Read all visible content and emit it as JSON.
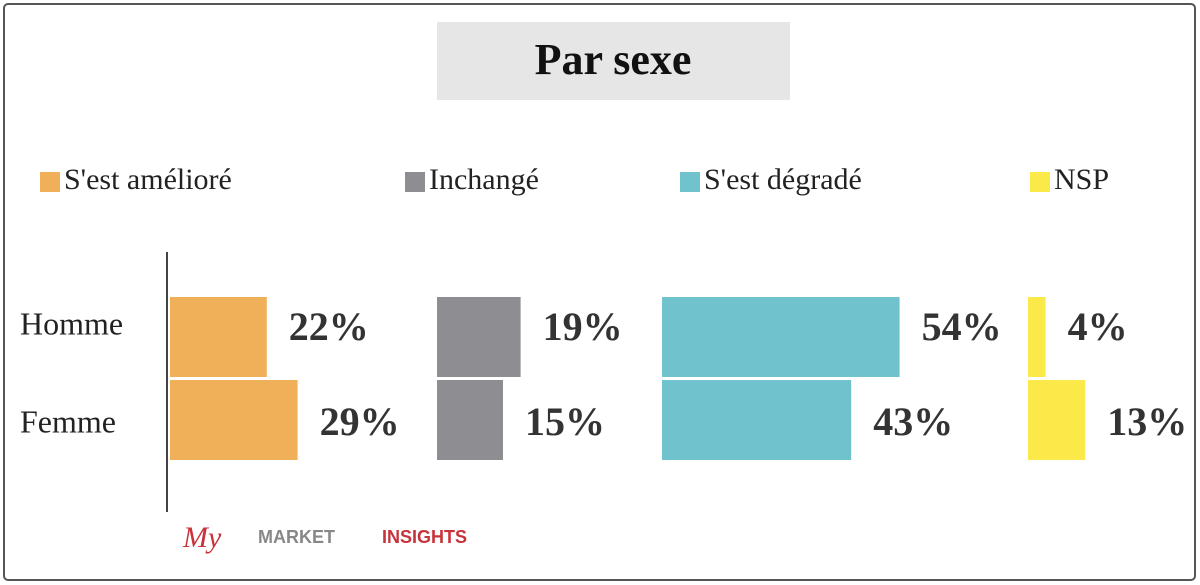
{
  "chart_data": {
    "type": "bar",
    "orientation": "horizontal",
    "title": "Par sexe",
    "categories": [
      "Homme",
      "Femme"
    ],
    "series": [
      {
        "name": "S'est amélioré",
        "color": "#f0b05a",
        "values": [
          22,
          29
        ],
        "value_labels": [
          "22%",
          "29%"
        ]
      },
      {
        "name": "Inchangé",
        "color": "#8e8e92",
        "values": [
          19,
          15
        ],
        "value_labels": [
          "19%",
          "15%"
        ]
      },
      {
        "name": "S'est dégradé",
        "color": "#70c2cc",
        "values": [
          54,
          43
        ],
        "value_labels": [
          "54%",
          "43%"
        ]
      },
      {
        "name": "NSP",
        "color": "#fbe94a",
        "values": [
          4,
          13
        ],
        "value_labels": [
          "4%",
          "13%"
        ]
      }
    ],
    "logo": {
      "my": "My",
      "market": "MARKET",
      "insights": "INSIGHTS"
    }
  }
}
